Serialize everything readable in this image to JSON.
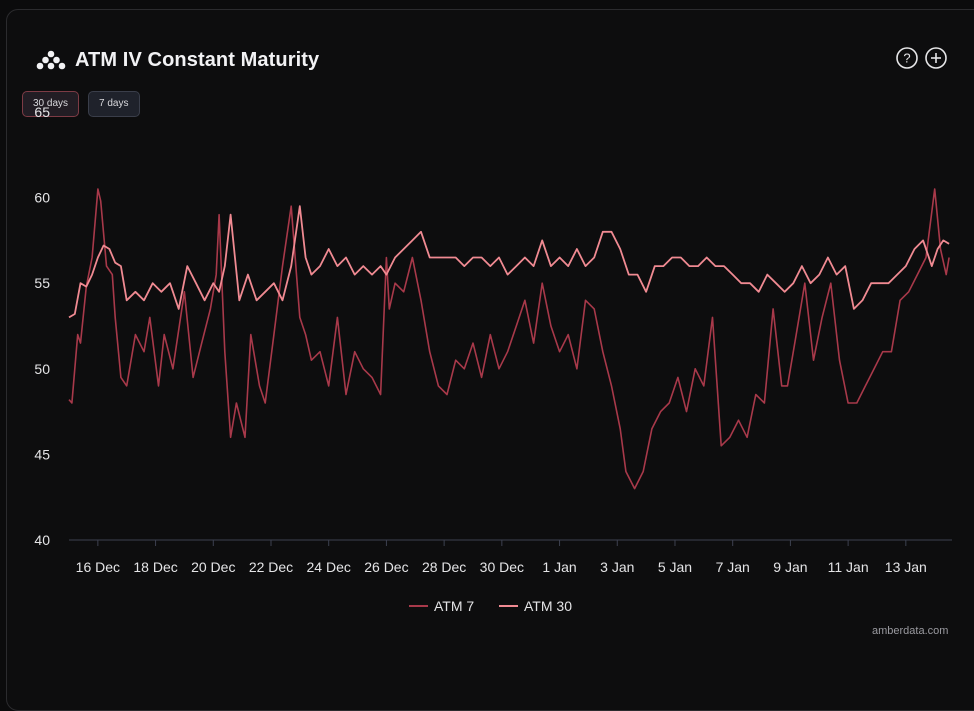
{
  "header": {
    "title": "ATM IV Constant Maturity",
    "logo_icon": "amberdata-logo-icon",
    "help_icon": "help-circle-icon",
    "add_icon": "plus-circle-icon"
  },
  "range_buttons": [
    {
      "label": "30 days",
      "active": true
    },
    {
      "label": "7 days",
      "active": false
    }
  ],
  "watermark": "amberdata.com",
  "colors": {
    "atm7": "#a8394a",
    "atm30": "#f08a92",
    "background": "#0d0d0e"
  },
  "chart_data": {
    "type": "line",
    "title": "ATM IV Constant Maturity",
    "xlabel": "",
    "ylabel": "",
    "x_unit": "days since 15 Dec",
    "xlim": [
      0,
      30.6
    ],
    "ylim": [
      40,
      65
    ],
    "yticks": [
      40,
      45,
      50,
      55,
      60,
      65
    ],
    "xticks": [
      {
        "x": 1,
        "label": "16 Dec"
      },
      {
        "x": 3,
        "label": "18 Dec"
      },
      {
        "x": 5,
        "label": "20 Dec"
      },
      {
        "x": 7,
        "label": "22 Dec"
      },
      {
        "x": 9,
        "label": "24 Dec"
      },
      {
        "x": 11,
        "label": "26 Dec"
      },
      {
        "x": 13,
        "label": "28 Dec"
      },
      {
        "x": 15,
        "label": "30 Dec"
      },
      {
        "x": 17,
        "label": "1 Jan"
      },
      {
        "x": 19,
        "label": "3 Jan"
      },
      {
        "x": 21,
        "label": "5 Jan"
      },
      {
        "x": 23,
        "label": "7 Jan"
      },
      {
        "x": 25,
        "label": "9 Jan"
      },
      {
        "x": 27,
        "label": "11 Jan"
      },
      {
        "x": 29,
        "label": "13 Jan"
      }
    ],
    "grid": false,
    "legend_position": "bottom-center",
    "series": [
      {
        "name": "ATM 7",
        "x": [
          0.0,
          0.1,
          0.3,
          0.4,
          0.6,
          0.8,
          1.0,
          1.1,
          1.3,
          1.5,
          1.6,
          1.8,
          2.0,
          2.3,
          2.6,
          2.8,
          3.1,
          3.3,
          3.6,
          4.0,
          4.3,
          4.6,
          4.9,
          5.1,
          5.2,
          5.4,
          5.6,
          5.8,
          6.1,
          6.3,
          6.6,
          6.8,
          7.1,
          7.4,
          7.7,
          8.0,
          8.2,
          8.4,
          8.7,
          9.0,
          9.3,
          9.6,
          9.9,
          10.2,
          10.5,
          10.8,
          11.0,
          11.1,
          11.3,
          11.6,
          11.9,
          12.2,
          12.5,
          12.8,
          13.1,
          13.4,
          13.7,
          14.0,
          14.3,
          14.6,
          14.9,
          15.2,
          15.5,
          15.8,
          16.1,
          16.4,
          16.7,
          17.0,
          17.3,
          17.6,
          17.9,
          18.2,
          18.5,
          18.8,
          19.1,
          19.3,
          19.6,
          19.9,
          20.2,
          20.5,
          20.8,
          21.1,
          21.4,
          21.7,
          22.0,
          22.3,
          22.6,
          22.9,
          23.2,
          23.5,
          23.8,
          24.1,
          24.4,
          24.7,
          24.9,
          25.2,
          25.5,
          25.8,
          26.1,
          26.4,
          26.7,
          27.0,
          27.3,
          27.6,
          27.9,
          28.2,
          28.5,
          28.8,
          29.1,
          29.4,
          29.7,
          30.0,
          30.2,
          30.4,
          30.5
        ],
        "values": [
          48.2,
          48.0,
          52.0,
          51.5,
          54.8,
          56.5,
          60.5,
          59.8,
          56.0,
          55.5,
          53.0,
          49.5,
          49.0,
          52.0,
          51.0,
          53.0,
          49.0,
          52.0,
          50.0,
          54.5,
          49.5,
          51.5,
          53.5,
          55.5,
          59.0,
          51.0,
          46.0,
          48.0,
          46.0,
          52.0,
          49.0,
          48.0,
          52.0,
          56.0,
          59.5,
          53.0,
          52.0,
          50.5,
          51.0,
          49.0,
          53.0,
          48.5,
          51.0,
          50.0,
          49.5,
          48.5,
          56.5,
          53.5,
          55.0,
          54.5,
          56.5,
          54.0,
          51.0,
          49.0,
          48.5,
          50.5,
          50.0,
          51.5,
          49.5,
          52.0,
          50.0,
          51.0,
          52.5,
          54.0,
          51.5,
          55.0,
          52.5,
          51.0,
          52.0,
          50.0,
          54.0,
          53.5,
          51.0,
          49.0,
          46.5,
          44.0,
          43.0,
          44.0,
          46.5,
          47.5,
          48.0,
          49.5,
          47.5,
          50.0,
          49.0,
          53.0,
          45.5,
          46.0,
          47.0,
          46.0,
          48.5,
          48.0,
          53.5,
          49.0,
          49.0,
          52.0,
          55.0,
          50.5,
          53.0,
          55.0,
          50.5,
          48.0,
          48.0,
          49.0,
          50.0,
          51.0,
          51.0,
          54.0,
          54.5,
          55.5,
          56.5,
          60.5,
          57.0,
          55.5,
          56.5
        ]
      },
      {
        "name": "ATM 30",
        "x": [
          0.0,
          0.2,
          0.4,
          0.6,
          0.8,
          1.0,
          1.2,
          1.4,
          1.6,
          1.8,
          2.0,
          2.3,
          2.6,
          2.9,
          3.2,
          3.5,
          3.8,
          4.1,
          4.4,
          4.7,
          5.0,
          5.2,
          5.4,
          5.6,
          5.9,
          6.2,
          6.5,
          6.8,
          7.1,
          7.4,
          7.7,
          8.0,
          8.2,
          8.4,
          8.7,
          9.0,
          9.3,
          9.6,
          9.9,
          10.2,
          10.5,
          10.8,
          11.0,
          11.3,
          11.6,
          11.9,
          12.2,
          12.5,
          12.8,
          13.1,
          13.4,
          13.7,
          14.0,
          14.3,
          14.6,
          14.9,
          15.2,
          15.5,
          15.8,
          16.1,
          16.4,
          16.7,
          17.0,
          17.3,
          17.6,
          17.9,
          18.2,
          18.5,
          18.8,
          19.1,
          19.4,
          19.7,
          20.0,
          20.3,
          20.6,
          20.9,
          21.2,
          21.5,
          21.8,
          22.1,
          22.4,
          22.7,
          23.0,
          23.3,
          23.6,
          23.9,
          24.2,
          24.5,
          24.8,
          25.1,
          25.4,
          25.7,
          26.0,
          26.3,
          26.6,
          26.9,
          27.2,
          27.5,
          27.8,
          28.1,
          28.4,
          28.7,
          29.0,
          29.3,
          29.6,
          29.9,
          30.1,
          30.3,
          30.5
        ],
        "values": [
          53.0,
          53.2,
          55.0,
          54.8,
          55.5,
          56.5,
          57.2,
          57.0,
          56.2,
          56.0,
          54.0,
          54.5,
          54.0,
          55.0,
          54.5,
          55.0,
          53.5,
          56.0,
          55.0,
          54.0,
          55.0,
          54.5,
          56.0,
          59.0,
          54.0,
          55.5,
          54.0,
          54.5,
          55.0,
          54.0,
          56.0,
          59.5,
          56.5,
          55.5,
          56.0,
          57.0,
          56.0,
          56.5,
          55.5,
          56.0,
          55.5,
          56.0,
          55.5,
          56.5,
          57.0,
          57.5,
          58.0,
          56.5,
          56.5,
          56.5,
          56.5,
          56.0,
          56.5,
          56.5,
          56.0,
          56.5,
          55.5,
          56.0,
          56.5,
          56.0,
          57.5,
          56.0,
          56.5,
          56.0,
          57.0,
          56.0,
          56.5,
          58.0,
          58.0,
          57.0,
          55.5,
          55.5,
          54.5,
          56.0,
          56.0,
          56.5,
          56.5,
          56.0,
          56.0,
          56.5,
          56.0,
          56.0,
          55.5,
          55.0,
          55.0,
          54.5,
          55.5,
          55.0,
          54.5,
          55.0,
          56.0,
          55.0,
          55.5,
          56.5,
          55.5,
          56.0,
          53.5,
          54.0,
          55.0,
          55.0,
          55.0,
          55.5,
          56.0,
          57.0,
          57.5,
          56.0,
          57.0,
          57.5,
          57.3
        ]
      }
    ]
  }
}
